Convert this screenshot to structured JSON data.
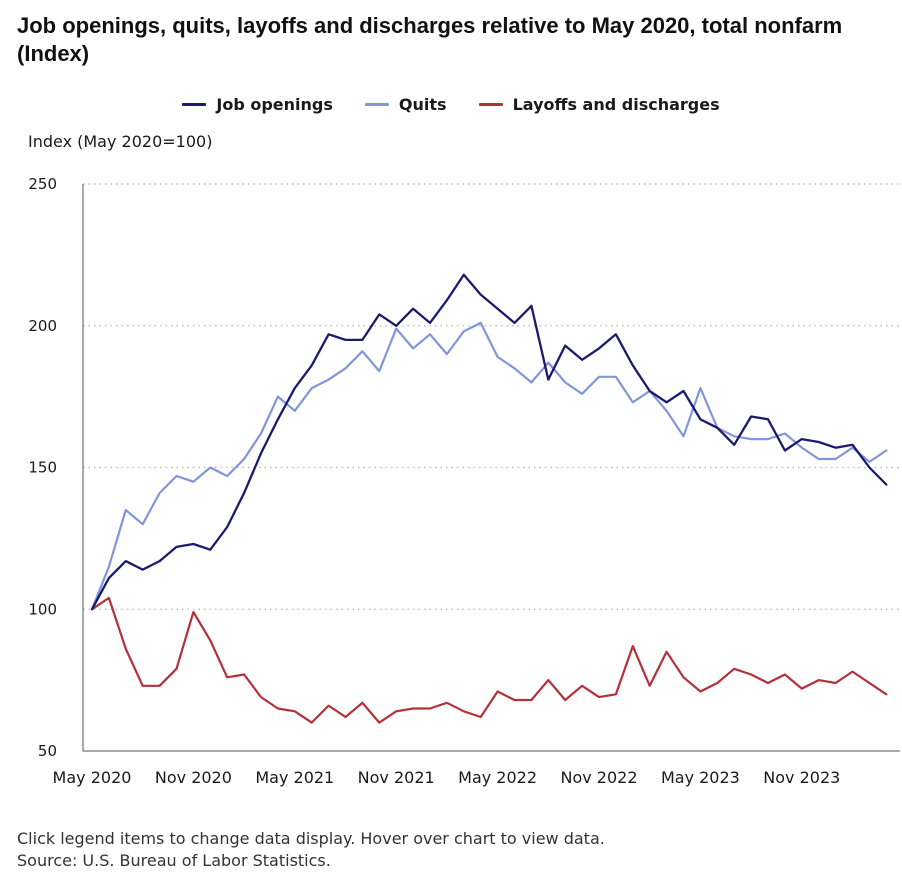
{
  "colors": {
    "job_openings": "#1c1a6e",
    "quits": "#8196d8",
    "layoffs": "#b4303a"
  },
  "footer": {
    "instruction": "Click legend items to change data display. Hover over chart to view data.",
    "source": "Source: U.S. Bureau of Labor Statistics."
  },
  "chart_data": {
    "type": "line",
    "title": "Job openings, quits, layoffs and discharges relative to May 2020, total nonfarm (Index)",
    "ylabel": "Index (May 2020=100)",
    "ylim": [
      50,
      250
    ],
    "yticks": [
      50,
      100,
      150,
      200,
      250
    ],
    "xlim": [
      "May 2020",
      "Apr 2024"
    ],
    "xtick_labels": [
      "May 2020",
      "Nov 2020",
      "May 2021",
      "Nov 2021",
      "May 2022",
      "Nov 2022",
      "May 2023",
      "Nov 2023"
    ],
    "x": [
      "May 2020",
      "Jun 2020",
      "Jul 2020",
      "Aug 2020",
      "Sep 2020",
      "Oct 2020",
      "Nov 2020",
      "Dec 2020",
      "Jan 2021",
      "Feb 2021",
      "Mar 2021",
      "Apr 2021",
      "May 2021",
      "Jun 2021",
      "Jul 2021",
      "Aug 2021",
      "Sep 2021",
      "Oct 2021",
      "Nov 2021",
      "Dec 2021",
      "Jan 2022",
      "Feb 2022",
      "Mar 2022",
      "Apr 2022",
      "May 2022",
      "Jun 2022",
      "Jul 2022",
      "Aug 2022",
      "Sep 2022",
      "Oct 2022",
      "Nov 2022",
      "Dec 2022",
      "Jan 2023",
      "Feb 2023",
      "Mar 2023",
      "Apr 2023",
      "May 2023",
      "Jun 2023",
      "Jul 2023",
      "Aug 2023",
      "Sep 2023",
      "Oct 2023",
      "Nov 2023",
      "Dec 2023",
      "Jan 2024",
      "Feb 2024",
      "Mar 2024",
      "Apr 2024"
    ],
    "grid": "horizontal dotted",
    "legend_position": "top",
    "series": [
      {
        "name": "Job openings",
        "key": "job_openings",
        "values": [
          100,
          111,
          117,
          114,
          117,
          122,
          123,
          121,
          129,
          141,
          155,
          167,
          178,
          186,
          197,
          195,
          195,
          204,
          200,
          206,
          201,
          209,
          218,
          211,
          206,
          201,
          207,
          181,
          193,
          188,
          192,
          197,
          186,
          177,
          173,
          177,
          167,
          164,
          158,
          168,
          167,
          156,
          160,
          159,
          157,
          158,
          150,
          144
        ]
      },
      {
        "name": "Quits",
        "key": "quits",
        "values": [
          100,
          115,
          135,
          130,
          141,
          147,
          145,
          150,
          147,
          153,
          162,
          175,
          170,
          178,
          181,
          185,
          191,
          184,
          199,
          192,
          197,
          190,
          198,
          201,
          189,
          185,
          180,
          187,
          180,
          176,
          182,
          182,
          173,
          177,
          170,
          161,
          178,
          164,
          161,
          160,
          160,
          162,
          157,
          153,
          153,
          157,
          152,
          156
        ]
      },
      {
        "name": "Layoffs and discharges",
        "key": "layoffs",
        "values": [
          100,
          104,
          86,
          73,
          73,
          79,
          99,
          89,
          76,
          77,
          69,
          65,
          64,
          60,
          66,
          62,
          67,
          60,
          64,
          65,
          65,
          67,
          64,
          62,
          71,
          68,
          68,
          75,
          68,
          73,
          69,
          70,
          87,
          73,
          85,
          76,
          71,
          74,
          79,
          77,
          74,
          77,
          72,
          75,
          74,
          78,
          74,
          70
        ]
      }
    ]
  }
}
